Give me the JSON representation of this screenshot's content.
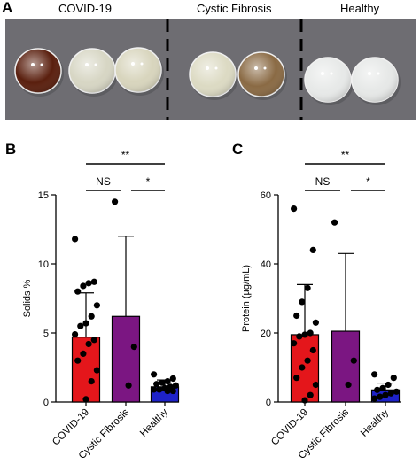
{
  "panel_a": {
    "letter": "A",
    "groups": [
      {
        "label": "COVID-19",
        "sample_colors": [
          "#5a1f0e",
          "#d7d6c4",
          "#d8d5bd"
        ]
      },
      {
        "label": "Cystic Fibrosis",
        "sample_colors": [
          "#dcdac3",
          "#8a6a44"
        ]
      },
      {
        "label": "Healthy",
        "sample_colors": [
          "#e7e9e8",
          "#e6e8e7"
        ]
      }
    ]
  },
  "chart_data": [
    {
      "type": "bar",
      "panel_letter": "B",
      "categories": [
        "COVID-19",
        "Cystic Fibrosis",
        "Healthy"
      ],
      "values": [
        4.7,
        6.2,
        1.1
      ],
      "error_upper": [
        7.9,
        12.0,
        1.6
      ],
      "colors": [
        "#e4161b",
        "#7b1682",
        "#1e22c8"
      ],
      "ylabel": "Solids %",
      "ylim": [
        0,
        15
      ],
      "yticks": [
        0,
        5,
        10,
        15
      ],
      "points": [
        [
          11.8,
          8.7,
          8.6,
          8.4,
          8.0,
          7.0,
          6.2,
          5.7,
          5.5,
          4.9,
          4.5,
          4.2,
          3.5,
          3.0,
          2.3,
          1.5,
          0.2
        ],
        [
          14.5,
          4.0,
          1.2
        ],
        [
          2.0,
          1.7,
          1.5,
          1.4,
          1.3,
          1.2,
          1.1,
          1.0,
          0.9,
          0.9,
          0.8,
          0.8
        ]
      ],
      "significance": [
        {
          "label": "**",
          "from": 0,
          "to": 2,
          "level": 0
        },
        {
          "label": "NS",
          "from": 0,
          "to": 1,
          "level": 1
        },
        {
          "label": "*",
          "from": 1,
          "to": 2,
          "level": 1
        }
      ]
    },
    {
      "type": "bar",
      "panel_letter": "C",
      "categories": [
        "COVID-19",
        "Cystic Fibrosis",
        "Healthy"
      ],
      "values": [
        19.5,
        20.5,
        3.5
      ],
      "error_upper": [
        34.0,
        43.0,
        5.5
      ],
      "colors": [
        "#e4161b",
        "#7b1682",
        "#1e22c8"
      ],
      "ylabel": "Protein (µg/mL)",
      "ylim": [
        0,
        60
      ],
      "yticks": [
        0,
        20,
        40,
        60
      ],
      "points": [
        [
          56.0,
          44.0,
          33.0,
          29.0,
          25.0,
          23.0,
          20.0,
          19.5,
          19.0,
          17.0,
          15.0,
          12.0,
          10.0,
          7.0,
          5.0,
          2.0,
          0.5
        ],
        [
          52.0,
          12.0,
          5.0
        ],
        [
          8.0,
          7.0,
          5.0,
          4.0,
          3.5,
          3.0,
          2.5,
          2.0,
          1.5,
          1.0
        ]
      ],
      "significance": [
        {
          "label": "**",
          "from": 0,
          "to": 2,
          "level": 0
        },
        {
          "label": "NS",
          "from": 0,
          "to": 1,
          "level": 1
        },
        {
          "label": "*",
          "from": 1,
          "to": 2,
          "level": 1
        }
      ]
    }
  ]
}
